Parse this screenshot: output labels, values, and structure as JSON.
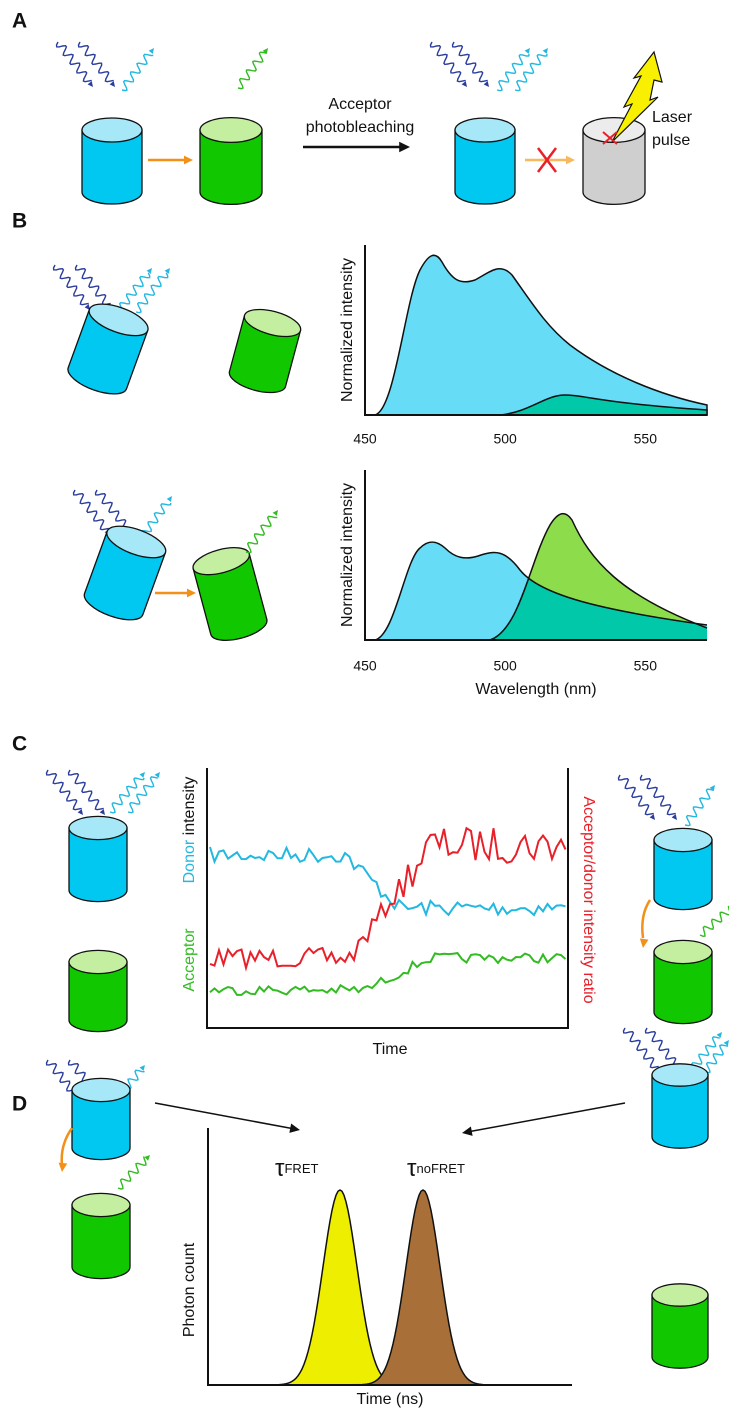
{
  "panel_a": {
    "label": "A",
    "arrow_text": [
      "Acceptor",
      "photobleaching"
    ],
    "laser_text": [
      "Laser",
      "pulse"
    ]
  },
  "panel_b": {
    "label": "B",
    "spectra": [
      {
        "y_label": "Normalized intensity",
        "xlim": [
          450,
          572
        ],
        "xticks": [
          450,
          500,
          550
        ]
      },
      {
        "y_label": "Normalized intensity",
        "xlim": [
          450,
          572
        ],
        "xticks": [
          450,
          500,
          550
        ],
        "x_label": "Wavelength (nm)"
      }
    ]
  },
  "panel_c": {
    "label": "C",
    "x_label": "Time",
    "y_label_donor": "Donor",
    "y_label_intensity": "intensity",
    "y_label_acceptor": "Acceptor",
    "y2_label": "Acceptor/donor intensity ratio"
  },
  "panel_d": {
    "label": "D",
    "x_label": "Time (ns)",
    "y_label": "Photon count",
    "peaks": [
      {
        "symbol": "τ",
        "subscript": "FRET"
      },
      {
        "symbol": "τ",
        "subscript": "noFRET"
      }
    ]
  }
}
